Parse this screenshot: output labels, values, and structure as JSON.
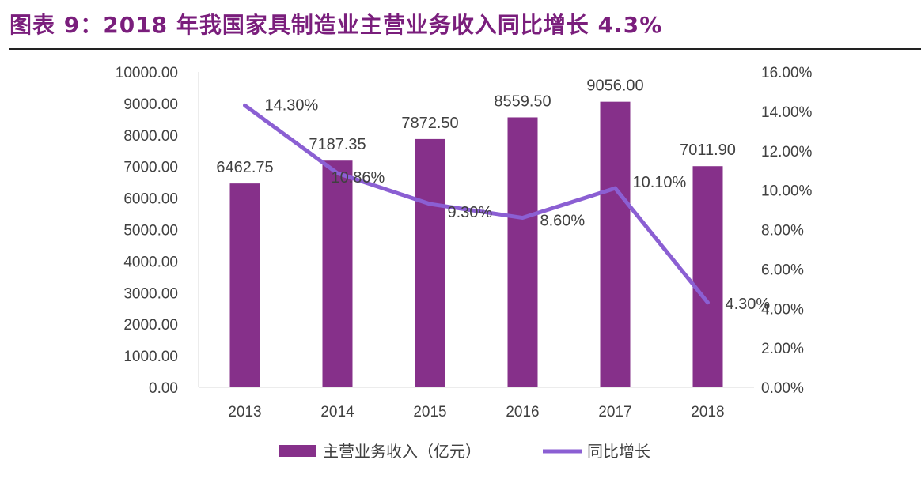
{
  "title": "图表 9：2018 年我国家具制造业主营业务收入同比增长 4.3%",
  "chart_data": {
    "type": "bar+line",
    "categories": [
      "2013",
      "2014",
      "2015",
      "2016",
      "2017",
      "2018"
    ],
    "series": [
      {
        "name": "主营业务收入（亿元）",
        "type": "bar",
        "axis": "left",
        "color": "#86308a",
        "values": [
          6462.75,
          7187.35,
          7872.5,
          8559.5,
          9056.0,
          7011.9
        ],
        "labels": [
          "6462.75",
          "7187.35",
          "7872.50",
          "8559.50",
          "9056.00",
          "7011.90"
        ]
      },
      {
        "name": "同比增长",
        "type": "line",
        "axis": "right",
        "color": "#8b5fd3",
        "values": [
          14.3,
          10.86,
          9.3,
          8.6,
          10.1,
          4.3
        ],
        "labels": [
          "14.30%",
          "10.86%",
          "9.30%",
          "8.60%",
          "10.10%",
          "4.30%"
        ]
      }
    ],
    "y_left": {
      "range": [
        0,
        10000
      ],
      "ticks": [
        "0.00",
        "1000.00",
        "2000.00",
        "3000.00",
        "4000.00",
        "5000.00",
        "6000.00",
        "7000.00",
        "8000.00",
        "9000.00",
        "10000.00"
      ]
    },
    "y_right": {
      "range": [
        0,
        16
      ],
      "ticks": [
        "0.00%",
        "2.00%",
        "4.00%",
        "6.00%",
        "8.00%",
        "10.00%",
        "12.00%",
        "14.00%",
        "16.00%"
      ]
    },
    "grid": false,
    "legend": "bottom"
  }
}
